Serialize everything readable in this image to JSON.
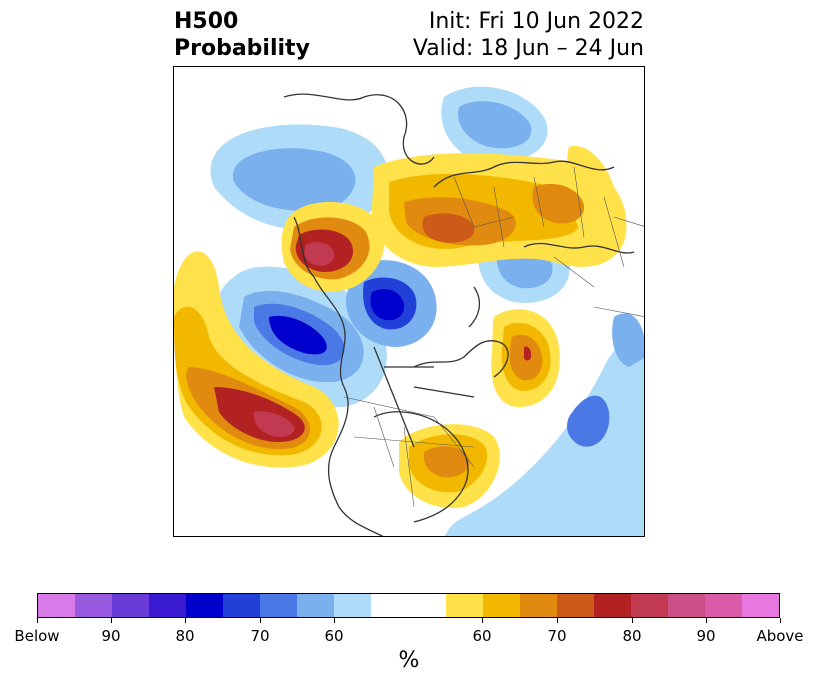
{
  "header": {
    "product_line1": "H500",
    "product_line2": "Probability",
    "init": "Init: Fri 10 Jun 2022",
    "valid": "Valid: 18 Jun – 24 Jun"
  },
  "colorbar": {
    "below_colors": [
      "#d87ae8",
      "#9a5ae0",
      "#6a3ad8",
      "#3a1ad0",
      "#0000cc",
      "#2040d8",
      "#4a78e4",
      "#7ab0ee",
      "#aedcf8"
    ],
    "neutral_color": "#ffffff",
    "above_colors": [
      "#ffe24a",
      "#f2b800",
      "#e08a10",
      "#cc5a18",
      "#b22222",
      "#c23a52",
      "#cc5088",
      "#da5ca8",
      "#e878e0"
    ],
    "tick_labels": [
      "Below",
      "90",
      "80",
      "70",
      "60",
      "60",
      "70",
      "80",
      "90",
      "Above"
    ],
    "unit": "%"
  }
}
